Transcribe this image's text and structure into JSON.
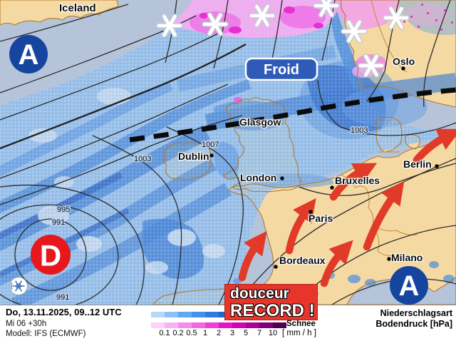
{
  "map": {
    "region_label": "Iceland",
    "cities": {
      "oslo": "Oslo",
      "glasgow": "Glasgow",
      "dublin": "Dublin",
      "london": "London",
      "bruxelles": "Bruxelles",
      "berlin": "Berlin",
      "paris": "Paris",
      "bordeaux": "Bordeaux",
      "milano": "Milano"
    },
    "pressure_letters": {
      "high_nw": "A",
      "low_west": "D",
      "high_se": "A"
    },
    "front_label": "Froid",
    "record_box": {
      "line1": "douceur",
      "line2": "RECORD !"
    },
    "isobar_labels": [
      "1003",
      "1007",
      "1003",
      "995",
      "991",
      "991"
    ]
  },
  "legend": {
    "ticks": [
      "0.1",
      "0.2",
      "0.5",
      "1",
      "2",
      "3",
      "5",
      "7",
      "10"
    ],
    "unit": "[ mm / h ]",
    "snow_label": "Schnee",
    "rain_colors": [
      "#b8d8fa",
      "#8cc0f6",
      "#62a8f0",
      "#4492e8",
      "#2e7cdc",
      "#2066cc",
      "#164eb8",
      "#0e3aa2",
      "#082a88",
      "#041c6e"
    ],
    "snow_colors": [
      "#fbd2f8",
      "#f9b2f2",
      "#f78ceb",
      "#f566e2",
      "#f13cd8",
      "#e912cc",
      "#cc04b4",
      "#a80296",
      "#7c0076",
      "#500052"
    ]
  },
  "footer": {
    "valid": "Do, 13.11.2025, 09..12 UTC",
    "run": "Mi 06 +30h",
    "model": "Modell: IFS (ECMWF)",
    "right1": "Niederschlagsart",
    "right2": "Bodendruck [hPa]"
  },
  "colors": {
    "ocean": "#b6c4da",
    "land": "#f5d9a2",
    "rain_mid": "#4385da",
    "snow_pink": "#f4aef0",
    "front_black": "#0b0b0b",
    "arrow_red": "#e13a28",
    "high_blue": "#16459f",
    "low_red": "#e8161d"
  }
}
